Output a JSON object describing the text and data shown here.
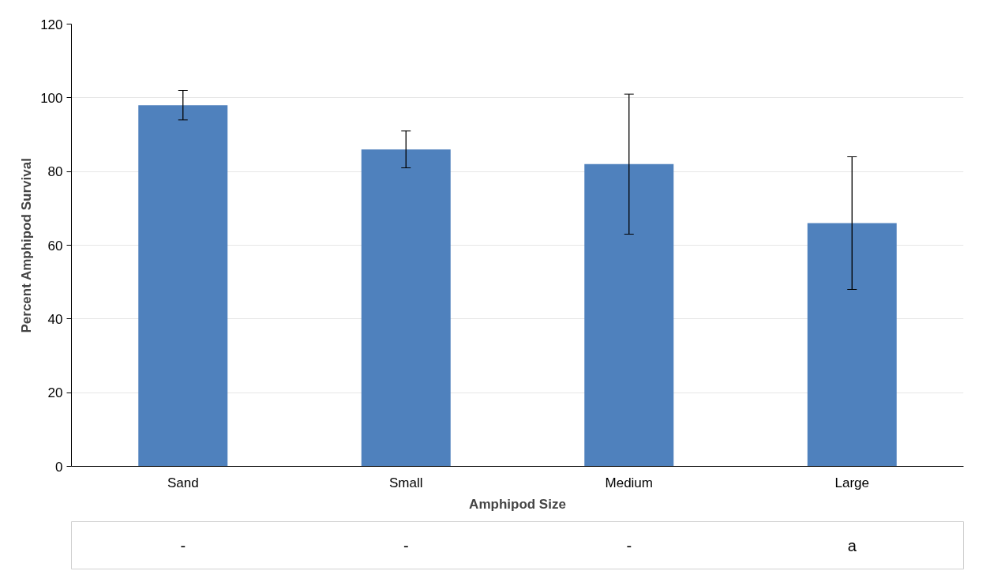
{
  "chart_data": {
    "type": "bar",
    "xlabel": "Amphipod Size",
    "ylabel": "Percent Amphipod Survival",
    "categories": [
      "Sand",
      "Small",
      "Medium",
      "Large"
    ],
    "values": [
      98,
      86,
      82,
      66
    ],
    "errors": [
      4,
      5,
      19,
      18
    ],
    "color": "#4f81bd",
    "ylim": [
      0,
      120
    ],
    "yticks": [
      0,
      20,
      40,
      60,
      80,
      100,
      120
    ],
    "grid": "y",
    "annotations": [
      "-",
      "-",
      "-",
      "a"
    ]
  }
}
